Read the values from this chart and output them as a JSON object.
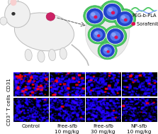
{
  "background_color": "#ffffff",
  "top_panel": {
    "peg_pla_label": "PEG-b-PLA",
    "sorafenib_label": "Sorafenib (sfb)",
    "peg_color": "#5acd6e",
    "sorafenib_color": "#cc0044"
  },
  "bottom_panel": {
    "row_labels": [
      "CD31",
      "CD3⁺ T cells"
    ],
    "col_labels": [
      "Control",
      "Free-sfb\n10 mg/kg",
      "Free-sfb\n30 mg/kg",
      "NP-sfb\n10 mg/kg"
    ],
    "label_fontsize": 5.2,
    "cd31_blue_density": [
      0.55,
      0.45,
      0.38,
      0.32
    ],
    "cd31_red_density": [
      0.55,
      0.35,
      0.18,
      0.15
    ],
    "cd3_blue_density": [
      0.52,
      0.5,
      0.55,
      0.5
    ],
    "cd3_red_density": [
      0.04,
      0.03,
      0.04,
      0.06
    ],
    "cd3_dark_density": [
      0.1,
      0.08,
      0.08,
      0.3
    ]
  }
}
